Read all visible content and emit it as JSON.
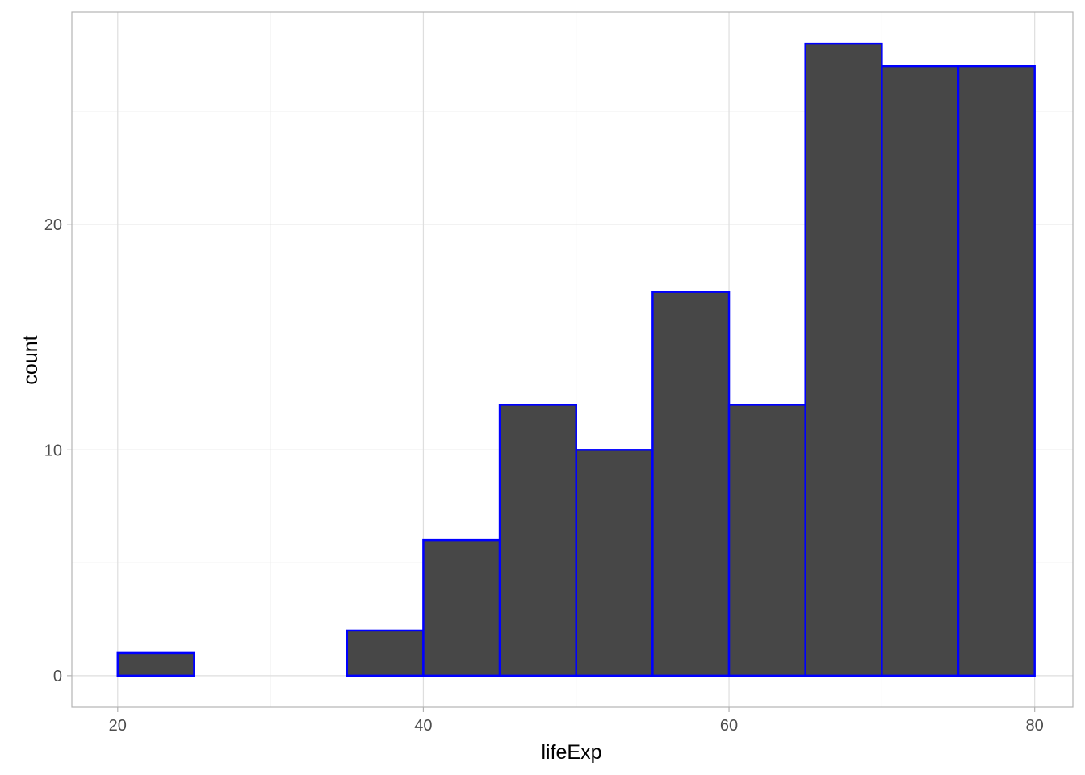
{
  "chart_data": {
    "type": "bar",
    "subtype": "histogram",
    "title": "",
    "xlabel": "lifeExp",
    "ylabel": "count",
    "bin_width": 5,
    "bins": [
      {
        "x0": 20,
        "x1": 25,
        "count": 1
      },
      {
        "x0": 25,
        "x1": 30,
        "count": 0
      },
      {
        "x0": 30,
        "x1": 35,
        "count": 0
      },
      {
        "x0": 35,
        "x1": 40,
        "count": 2
      },
      {
        "x0": 40,
        "x1": 45,
        "count": 6
      },
      {
        "x0": 45,
        "x1": 50,
        "count": 12
      },
      {
        "x0": 50,
        "x1": 55,
        "count": 10
      },
      {
        "x0": 55,
        "x1": 60,
        "count": 17
      },
      {
        "x0": 60,
        "x1": 65,
        "count": 12
      },
      {
        "x0": 65,
        "x1": 70,
        "count": 28
      },
      {
        "x0": 70,
        "x1": 75,
        "count": 27
      },
      {
        "x0": 75,
        "x1": 80,
        "count": 27
      }
    ],
    "xlim": [
      17,
      82.5
    ],
    "ylim": [
      -1.4,
      29.4
    ],
    "x_ticks": [
      20,
      40,
      60,
      80
    ],
    "x_tick_labels": [
      "20",
      "40",
      "60",
      "80"
    ],
    "x_minor_ticks": [
      30,
      50,
      70
    ],
    "y_ticks": [
      0,
      10,
      20
    ],
    "y_tick_labels": [
      "0",
      "10",
      "20"
    ],
    "y_minor_ticks": [
      5,
      15,
      25
    ],
    "grid": true,
    "legend": "none",
    "colors": {
      "bar_fill": "#474747",
      "bar_outline": "#0000ff",
      "grid_major": "#dedede",
      "grid_minor": "#efefef",
      "panel_border": "#b3b3b3",
      "tick_label": "#4d4d4d"
    }
  }
}
